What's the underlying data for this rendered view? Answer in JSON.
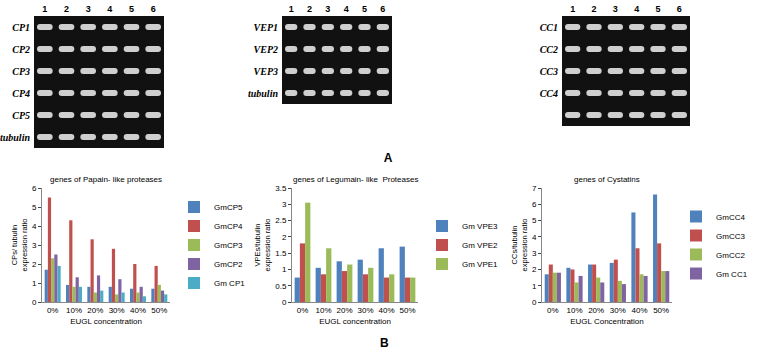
{
  "figure": {
    "panel_labels": [
      "A",
      "B"
    ],
    "gels": [
      {
        "lanes": [
          "1",
          "2",
          "3",
          "4",
          "5",
          "6"
        ],
        "rows": [
          "CP1",
          "CP2",
          "CP3",
          "CP4",
          "CP5",
          "tubulin"
        ]
      },
      {
        "lanes": [
          "1",
          "2",
          "3",
          "4",
          "5",
          "6"
        ],
        "rows": [
          "VEP1",
          "VEP2",
          "VEP3",
          "tubulin"
        ]
      },
      {
        "lanes": [
          "1",
          "2",
          "3",
          "4",
          "5",
          "6"
        ],
        "rows": [
          "CC1",
          "CC2",
          "CC3",
          "CC4",
          null
        ]
      }
    ]
  },
  "chart_data": [
    {
      "type": "bar",
      "title": "genes of Papain- like proteases",
      "x_label": "EUGL concentration",
      "y_label": "CPs/ tubulin expression ratio",
      "categories": [
        "0%",
        "10%",
        "20%",
        "30%",
        "40%",
        "50%"
      ],
      "series": [
        {
          "name": "GmCP5",
          "color": "#4F81BD",
          "values": [
            1.7,
            0.9,
            0.8,
            0.8,
            0.7,
            0.7
          ]
        },
        {
          "name": "GmCP4",
          "color": "#C0504D",
          "values": [
            5.5,
            4.3,
            3.3,
            2.8,
            2.0,
            1.9
          ]
        },
        {
          "name": "GmCP3",
          "color": "#9BBB59",
          "values": [
            2.3,
            0.8,
            0.5,
            0.4,
            0.5,
            0.9
          ]
        },
        {
          "name": "GmCP2",
          "color": "#8064A2",
          "values": [
            2.5,
            1.3,
            1.4,
            1.2,
            0.8,
            0.6
          ]
        },
        {
          "name": "Gm CP1",
          "color": "#4BACC6",
          "values": [
            1.9,
            0.8,
            0.6,
            0.5,
            0.3,
            0.4
          ]
        }
      ],
      "ylim": [
        0,
        6
      ],
      "yticks": [
        0,
        1,
        2,
        3,
        4,
        5,
        6
      ],
      "grid": false,
      "legend": "right"
    },
    {
      "type": "bar",
      "title": "genes of Legumain- like  Proteases",
      "x_label": "EUGL concentration",
      "y_label": "VPEs/tubulin expression ratio",
      "categories": [
        "0%",
        "10%",
        "20%",
        "30%",
        "40%",
        "50%"
      ],
      "series": [
        {
          "name": "Gm VPE3",
          "color": "#4F81BD",
          "values": [
            0.75,
            1.05,
            1.25,
            1.3,
            1.65,
            1.7
          ]
        },
        {
          "name": "Gm VPE2",
          "color": "#C0504D",
          "values": [
            1.8,
            0.85,
            0.95,
            0.85,
            0.75,
            0.75
          ]
        },
        {
          "name": "Gm VPE1",
          "color": "#9BBB59",
          "values": [
            3.05,
            1.65,
            1.15,
            1.05,
            0.85,
            0.75
          ]
        }
      ],
      "ylim": [
        0,
        3.5
      ],
      "yticks": [
        0,
        0.5,
        1,
        1.5,
        2,
        2.5,
        3,
        3.5
      ],
      "grid": false,
      "legend": "right"
    },
    {
      "type": "bar",
      "title": "genes of Cystatins",
      "x_label": "EUGL Concentration",
      "y_label": "CCs/tubulin expression ratio",
      "categories": [
        "0%",
        "10%",
        "20%",
        "30%",
        "40%",
        "50%"
      ],
      "series": [
        {
          "name": "GmCC4",
          "color": "#4F81BD",
          "values": [
            1.7,
            2.1,
            2.3,
            2.4,
            5.5,
            6.6
          ]
        },
        {
          "name": "GmCC3",
          "color": "#C0504D",
          "values": [
            2.3,
            2.0,
            2.3,
            2.6,
            3.3,
            3.6
          ]
        },
        {
          "name": "GmCC2",
          "color": "#9BBB59",
          "values": [
            1.8,
            1.2,
            1.5,
            1.3,
            1.7,
            1.9
          ]
        },
        {
          "name": "Gm CC1",
          "color": "#8064A2",
          "values": [
            1.8,
            1.6,
            1.2,
            1.1,
            1.6,
            1.9
          ]
        }
      ],
      "ylim": [
        0,
        7
      ],
      "yticks": [
        0,
        1,
        2,
        3,
        4,
        5,
        6,
        7
      ],
      "grid": false,
      "legend": "right"
    }
  ]
}
